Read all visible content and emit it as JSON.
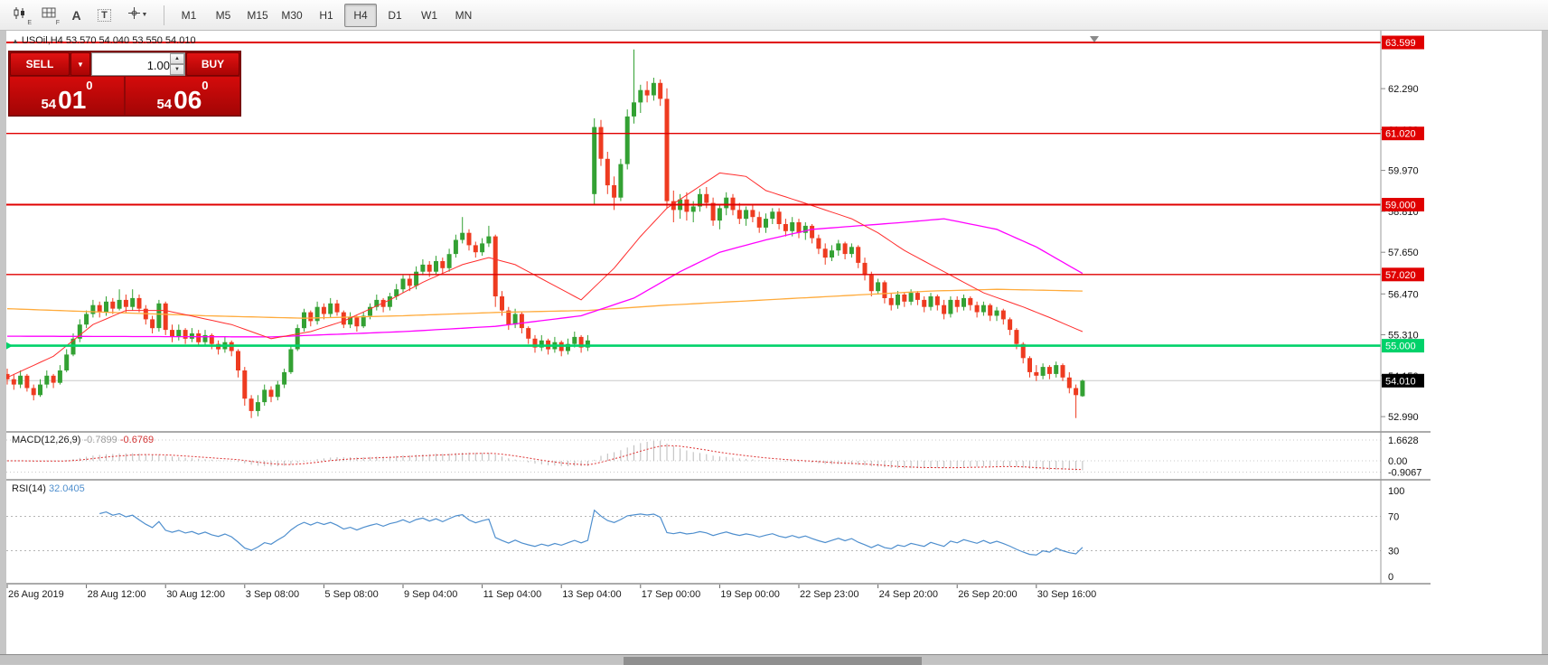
{
  "toolbar": {
    "tool_labels": {
      "a": "A",
      "t": "T",
      "e_sub": "E",
      "f_sub": "F"
    },
    "timeframes": [
      {
        "label": "M1"
      },
      {
        "label": "M5"
      },
      {
        "label": "M15"
      },
      {
        "label": "M30"
      },
      {
        "label": "H1"
      },
      {
        "label": "H4"
      },
      {
        "label": "D1"
      },
      {
        "label": "W1"
      },
      {
        "label": "MN"
      }
    ],
    "active_timeframe": "H4"
  },
  "trade_panel": {
    "sell_label": "SELL",
    "buy_label": "BUY",
    "volume": "1.00",
    "sell_price": {
      "small": "54",
      "big": "01",
      "sup": "0"
    },
    "buy_price": {
      "small": "54",
      "big": "06",
      "sup": "0"
    }
  },
  "chart": {
    "symbol_info": "USOil,H4 53.570 54.040 53.550 54.010"
  },
  "chart_data": {
    "type": "candlestick",
    "symbol": "USOil",
    "timeframe": "H4",
    "colors": {
      "up": "#33a133",
      "down": "#ee3b20",
      "level_red": "#e00000",
      "level_green": "#00d26a",
      "bid_line": "#c9c9c9",
      "bid_badge": "#000000",
      "macd_hist": "#bbbbbb",
      "macd_signal": "#dd3333",
      "rsi_line": "#4f8fce"
    },
    "price_axis_ticks": [
      62.29,
      61.13,
      59.97,
      58.81,
      57.65,
      56.47,
      55.31,
      54.15,
      52.99
    ],
    "levels": [
      {
        "price": 63.599,
        "label": "63.599",
        "color": "#e00000",
        "width": 2
      },
      {
        "price": 61.02,
        "label": "61.020",
        "color": "#e00000",
        "width": 1.4
      },
      {
        "price": 59.0,
        "label": "59.000",
        "color": "#e00000",
        "width": 2
      },
      {
        "price": 57.02,
        "label": "57.020",
        "color": "#e00000",
        "width": 1.4
      },
      {
        "price": 55.0,
        "label": "55.000",
        "color": "#00d26a",
        "width": 2.6
      }
    ],
    "bid": {
      "price": 54.01,
      "label": "54.010"
    },
    "x_labels": [
      {
        "bar": 0,
        "label": "26 Aug 2019"
      },
      {
        "bar": 12,
        "label": "28 Aug 12:00"
      },
      {
        "bar": 24,
        "label": "30 Aug 12:00"
      },
      {
        "bar": 36,
        "label": "3 Sep 08:00"
      },
      {
        "bar": 48,
        "label": "5 Sep 08:00"
      },
      {
        "bar": 60,
        "label": "9 Sep 04:00"
      },
      {
        "bar": 72,
        "label": "11 Sep 04:00"
      },
      {
        "bar": 84,
        "label": "13 Sep 04:00"
      },
      {
        "bar": 96,
        "label": "17 Sep 00:00"
      },
      {
        "bar": 108,
        "label": "19 Sep 00:00"
      },
      {
        "bar": 120,
        "label": "22 Sep 23:00"
      },
      {
        "bar": 132,
        "label": "24 Sep 20:00"
      },
      {
        "bar": 144,
        "label": "26 Sep 20:00"
      },
      {
        "bar": 156,
        "label": "30 Sep 16:00"
      }
    ],
    "ohlc": [
      [
        54.2,
        54.35,
        53.9,
        54.05
      ],
      [
        54.05,
        54.2,
        53.75,
        53.9
      ],
      [
        53.9,
        54.3,
        53.8,
        54.15
      ],
      [
        54.15,
        54.2,
        53.7,
        53.8
      ],
      [
        53.8,
        53.9,
        53.45,
        53.6
      ],
      [
        53.6,
        54.05,
        53.55,
        53.9
      ],
      [
        53.9,
        54.3,
        53.8,
        54.15
      ],
      [
        54.15,
        54.2,
        53.8,
        53.95
      ],
      [
        53.95,
        54.45,
        53.9,
        54.3
      ],
      [
        54.3,
        54.9,
        54.25,
        54.75
      ],
      [
        54.75,
        55.35,
        54.7,
        55.2
      ],
      [
        55.2,
        55.75,
        55.1,
        55.6
      ],
      [
        55.6,
        56.0,
        55.5,
        55.9
      ],
      [
        55.9,
        56.3,
        55.8,
        56.15
      ],
      [
        56.15,
        56.25,
        55.8,
        55.95
      ],
      [
        55.95,
        56.4,
        55.85,
        56.25
      ],
      [
        56.25,
        56.35,
        55.9,
        56.05
      ],
      [
        56.05,
        56.6,
        56.0,
        56.3
      ],
      [
        56.3,
        56.45,
        55.95,
        56.1
      ],
      [
        56.1,
        56.6,
        56.0,
        56.35
      ],
      [
        56.35,
        56.45,
        55.95,
        56.05
      ],
      [
        56.05,
        56.15,
        55.6,
        55.75
      ],
      [
        55.75,
        55.85,
        55.35,
        55.5
      ],
      [
        55.5,
        56.3,
        55.4,
        56.2
      ],
      [
        56.2,
        56.25,
        55.3,
        55.45
      ],
      [
        55.45,
        55.6,
        55.1,
        55.25
      ],
      [
        55.25,
        55.6,
        55.15,
        55.45
      ],
      [
        55.45,
        55.5,
        55.05,
        55.2
      ],
      [
        55.2,
        55.5,
        55.1,
        55.35
      ],
      [
        55.35,
        55.45,
        55.0,
        55.1
      ],
      [
        55.1,
        55.45,
        55.0,
        55.3
      ],
      [
        55.3,
        55.35,
        54.9,
        55.05
      ],
      [
        55.05,
        55.15,
        54.75,
        54.9
      ],
      [
        54.9,
        55.25,
        54.8,
        55.1
      ],
      [
        55.1,
        55.15,
        54.7,
        54.85
      ],
      [
        54.85,
        54.9,
        54.1,
        54.3
      ],
      [
        54.3,
        54.4,
        53.3,
        53.5
      ],
      [
        53.5,
        53.6,
        52.95,
        53.15
      ],
      [
        53.15,
        53.6,
        53.0,
        53.4
      ],
      [
        53.4,
        53.9,
        53.3,
        53.75
      ],
      [
        53.75,
        53.85,
        53.4,
        53.55
      ],
      [
        53.55,
        54.0,
        53.45,
        53.9
      ],
      [
        53.9,
        54.35,
        53.8,
        54.25
      ],
      [
        54.25,
        55.0,
        54.2,
        54.9
      ],
      [
        54.9,
        55.6,
        54.85,
        55.5
      ],
      [
        55.5,
        56.05,
        55.4,
        55.95
      ],
      [
        55.95,
        56.0,
        55.55,
        55.7
      ],
      [
        55.7,
        56.25,
        55.6,
        56.1
      ],
      [
        56.1,
        56.2,
        55.75,
        55.9
      ],
      [
        55.9,
        56.35,
        55.8,
        56.2
      ],
      [
        56.2,
        56.3,
        55.85,
        55.95
      ],
      [
        55.95,
        56.0,
        55.5,
        55.6
      ],
      [
        55.6,
        55.95,
        55.5,
        55.8
      ],
      [
        55.8,
        55.85,
        55.4,
        55.55
      ],
      [
        55.55,
        55.95,
        55.5,
        55.85
      ],
      [
        55.85,
        56.2,
        55.75,
        56.1
      ],
      [
        56.1,
        56.45,
        56.0,
        56.3
      ],
      [
        56.3,
        56.35,
        55.95,
        56.1
      ],
      [
        56.1,
        56.5,
        56.0,
        56.4
      ],
      [
        56.4,
        56.75,
        56.3,
        56.6
      ],
      [
        56.6,
        57.0,
        56.5,
        56.9
      ],
      [
        56.9,
        57.0,
        56.55,
        56.7
      ],
      [
        56.7,
        57.25,
        56.6,
        57.1
      ],
      [
        57.1,
        57.45,
        57.0,
        57.3
      ],
      [
        57.3,
        57.4,
        56.95,
        57.1
      ],
      [
        57.1,
        57.55,
        57.0,
        57.4
      ],
      [
        57.4,
        57.5,
        57.05,
        57.2
      ],
      [
        57.2,
        57.75,
        57.1,
        57.6
      ],
      [
        57.6,
        58.15,
        57.5,
        58.0
      ],
      [
        58.0,
        58.65,
        57.9,
        58.2
      ],
      [
        58.2,
        58.3,
        57.7,
        57.85
      ],
      [
        57.85,
        57.95,
        57.5,
        57.65
      ],
      [
        57.65,
        58.05,
        57.55,
        57.9
      ],
      [
        57.9,
        58.4,
        57.8,
        58.1
      ],
      [
        58.1,
        58.15,
        56.1,
        56.4
      ],
      [
        56.4,
        56.55,
        55.85,
        56.0
      ],
      [
        56.0,
        56.1,
        55.45,
        55.6
      ],
      [
        55.6,
        56.05,
        55.5,
        55.9
      ],
      [
        55.9,
        55.95,
        55.35,
        55.5
      ],
      [
        55.5,
        55.55,
        55.05,
        55.2
      ],
      [
        55.2,
        55.3,
        54.8,
        54.95
      ],
      [
        54.95,
        55.3,
        54.85,
        55.15
      ],
      [
        55.15,
        55.2,
        54.75,
        54.9
      ],
      [
        54.9,
        55.25,
        54.8,
        55.1
      ],
      [
        55.1,
        55.15,
        54.7,
        54.85
      ],
      [
        54.85,
        55.2,
        54.75,
        55.05
      ],
      [
        55.05,
        55.4,
        54.95,
        55.25
      ],
      [
        55.25,
        55.3,
        54.8,
        54.95
      ],
      [
        54.95,
        55.3,
        54.85,
        55.15
      ],
      [
        59.3,
        61.45,
        59.0,
        61.2
      ],
      [
        61.2,
        61.4,
        60.1,
        60.3
      ],
      [
        60.3,
        60.5,
        59.3,
        59.55
      ],
      [
        59.55,
        59.8,
        58.85,
        59.2
      ],
      [
        59.2,
        60.3,
        59.1,
        60.15
      ],
      [
        60.15,
        61.7,
        60.0,
        61.5
      ],
      [
        61.5,
        63.4,
        61.3,
        61.9
      ],
      [
        61.9,
        62.4,
        61.6,
        62.25
      ],
      [
        62.25,
        62.5,
        61.9,
        62.1
      ],
      [
        62.1,
        62.6,
        61.95,
        62.45
      ],
      [
        62.45,
        62.55,
        61.8,
        62.0
      ],
      [
        62.0,
        62.3,
        58.9,
        59.1
      ],
      [
        59.1,
        59.4,
        58.5,
        58.85
      ],
      [
        58.85,
        59.3,
        58.6,
        59.15
      ],
      [
        59.15,
        59.35,
        58.55,
        58.8
      ],
      [
        58.8,
        59.1,
        58.5,
        58.95
      ],
      [
        58.95,
        59.45,
        58.8,
        59.3
      ],
      [
        59.3,
        59.5,
        58.9,
        59.05
      ],
      [
        59.05,
        59.2,
        58.4,
        58.55
      ],
      [
        58.55,
        59.0,
        58.3,
        58.9
      ],
      [
        58.9,
        59.35,
        58.7,
        59.2
      ],
      [
        59.2,
        59.3,
        58.7,
        58.85
      ],
      [
        58.85,
        59.05,
        58.45,
        58.6
      ],
      [
        58.6,
        58.95,
        58.4,
        58.85
      ],
      [
        58.85,
        59.0,
        58.5,
        58.65
      ],
      [
        58.65,
        58.8,
        58.2,
        58.35
      ],
      [
        58.35,
        58.75,
        58.2,
        58.6
      ],
      [
        58.6,
        58.9,
        58.45,
        58.8
      ],
      [
        58.8,
        58.9,
        58.3,
        58.45
      ],
      [
        58.45,
        58.6,
        58.1,
        58.25
      ],
      [
        58.25,
        58.65,
        58.1,
        58.5
      ],
      [
        58.5,
        58.6,
        58.05,
        58.2
      ],
      [
        58.2,
        58.5,
        58.0,
        58.4
      ],
      [
        58.4,
        58.45,
        57.9,
        58.05
      ],
      [
        58.05,
        58.15,
        57.6,
        57.75
      ],
      [
        57.75,
        57.9,
        57.3,
        57.5
      ],
      [
        57.5,
        57.85,
        57.4,
        57.7
      ],
      [
        57.7,
        58.0,
        57.55,
        57.9
      ],
      [
        57.9,
        57.95,
        57.45,
        57.6
      ],
      [
        57.6,
        57.9,
        57.5,
        57.8
      ],
      [
        57.8,
        57.85,
        57.2,
        57.35
      ],
      [
        57.35,
        57.5,
        56.85,
        57.0
      ],
      [
        57.0,
        57.1,
        56.4,
        56.55
      ],
      [
        56.55,
        56.9,
        56.45,
        56.8
      ],
      [
        56.8,
        56.85,
        56.2,
        56.35
      ],
      [
        56.35,
        56.5,
        56.0,
        56.15
      ],
      [
        56.15,
        56.55,
        56.05,
        56.45
      ],
      [
        56.45,
        56.5,
        56.1,
        56.25
      ],
      [
        56.25,
        56.6,
        56.15,
        56.5
      ],
      [
        56.5,
        56.55,
        56.15,
        56.3
      ],
      [
        56.3,
        56.4,
        55.95,
        56.1
      ],
      [
        56.1,
        56.5,
        56.0,
        56.4
      ],
      [
        56.4,
        56.45,
        56.0,
        56.15
      ],
      [
        56.15,
        56.3,
        55.75,
        55.9
      ],
      [
        55.9,
        56.4,
        55.8,
        56.3
      ],
      [
        56.3,
        56.4,
        55.95,
        56.1
      ],
      [
        56.1,
        56.45,
        56.0,
        56.35
      ],
      [
        56.35,
        56.4,
        56.0,
        56.15
      ],
      [
        56.15,
        56.25,
        55.8,
        55.95
      ],
      [
        55.95,
        56.25,
        55.85,
        56.15
      ],
      [
        56.15,
        56.2,
        55.7,
        55.85
      ],
      [
        55.85,
        56.1,
        55.7,
        56.0
      ],
      [
        56.0,
        56.05,
        55.6,
        55.75
      ],
      [
        55.75,
        55.8,
        55.3,
        55.45
      ],
      [
        55.45,
        55.5,
        54.9,
        55.05
      ],
      [
        55.05,
        55.1,
        54.5,
        54.65
      ],
      [
        54.65,
        54.7,
        54.1,
        54.25
      ],
      [
        54.25,
        54.45,
        54.0,
        54.15
      ],
      [
        54.15,
        54.5,
        54.05,
        54.4
      ],
      [
        54.4,
        54.45,
        54.05,
        54.2
      ],
      [
        54.2,
        54.55,
        54.1,
        54.45
      ],
      [
        54.45,
        54.5,
        54.0,
        54.1
      ],
      [
        54.1,
        54.25,
        53.65,
        53.8
      ],
      [
        53.8,
        53.9,
        52.95,
        53.6
      ],
      [
        53.57,
        54.04,
        53.55,
        54.01
      ]
    ],
    "ma_lines": [
      {
        "name": "ma-slow-orange",
        "color": "#ffab3c",
        "width": 1.3,
        "points": [
          [
            0,
            56.05
          ],
          [
            15,
            55.95
          ],
          [
            30,
            55.85
          ],
          [
            45,
            55.78
          ],
          [
            60,
            55.85
          ],
          [
            75,
            55.95
          ],
          [
            88,
            56.0
          ],
          [
            100,
            56.15
          ],
          [
            110,
            56.25
          ],
          [
            120,
            56.35
          ],
          [
            130,
            56.45
          ],
          [
            140,
            56.55
          ],
          [
            150,
            56.6
          ],
          [
            163,
            56.55
          ]
        ]
      },
      {
        "name": "ma-mid-magenta",
        "color": "#ff00ff",
        "width": 1.3,
        "points": [
          [
            0,
            55.27
          ],
          [
            40,
            55.25
          ],
          [
            60,
            55.4
          ],
          [
            74,
            55.55
          ],
          [
            87,
            55.85
          ],
          [
            95,
            56.35
          ],
          [
            102,
            57.1
          ],
          [
            108,
            57.65
          ],
          [
            115,
            58.0
          ],
          [
            122,
            58.3
          ],
          [
            129,
            58.4
          ],
          [
            136,
            58.5
          ],
          [
            142,
            58.6
          ],
          [
            150,
            58.3
          ],
          [
            156,
            57.8
          ],
          [
            163,
            57.05
          ]
        ]
      },
      {
        "name": "ma-fast-red",
        "color": "#ff2d2d",
        "width": 1,
        "points": [
          [
            0,
            54.1
          ],
          [
            7,
            54.7
          ],
          [
            13,
            55.6
          ],
          [
            18,
            56.0
          ],
          [
            24,
            56.0
          ],
          [
            29,
            55.8
          ],
          [
            34,
            55.6
          ],
          [
            40,
            55.2
          ],
          [
            46,
            55.4
          ],
          [
            51,
            55.7
          ],
          [
            58,
            56.3
          ],
          [
            63,
            56.8
          ],
          [
            69,
            57.3
          ],
          [
            73,
            57.5
          ],
          [
            77,
            57.3
          ],
          [
            81,
            56.9
          ],
          [
            87,
            56.3
          ],
          [
            92,
            57.2
          ],
          [
            96,
            58.1
          ],
          [
            100,
            58.9
          ],
          [
            104,
            59.4
          ],
          [
            108,
            59.9
          ],
          [
            112,
            59.8
          ],
          [
            115,
            59.4
          ],
          [
            120,
            59.1
          ],
          [
            124,
            58.85
          ],
          [
            128,
            58.6
          ],
          [
            132,
            58.2
          ],
          [
            136,
            57.7
          ],
          [
            140,
            57.3
          ],
          [
            148,
            56.5
          ],
          [
            154,
            56.1
          ],
          [
            158,
            55.8
          ],
          [
            163,
            55.4
          ]
        ]
      }
    ],
    "macd": {
      "name_label": "MACD(12,26,9)",
      "value_main": "-0.7899",
      "value_signal": "-0.6769",
      "fast": 12,
      "slow": 26,
      "signal": 9,
      "axis_labels": [
        "1.6628",
        "0.00",
        "-0.9067"
      ],
      "axis_values": [
        1.6628,
        0,
        -0.9067
      ]
    },
    "rsi": {
      "name_label": "RSI(14)",
      "value": "32.0405",
      "period": 14,
      "axis_labels": [
        "100",
        "70",
        "30",
        "0"
      ],
      "axis_values": [
        100,
        70,
        30,
        0
      ],
      "dashed_levels": [
        70,
        30
      ]
    }
  }
}
